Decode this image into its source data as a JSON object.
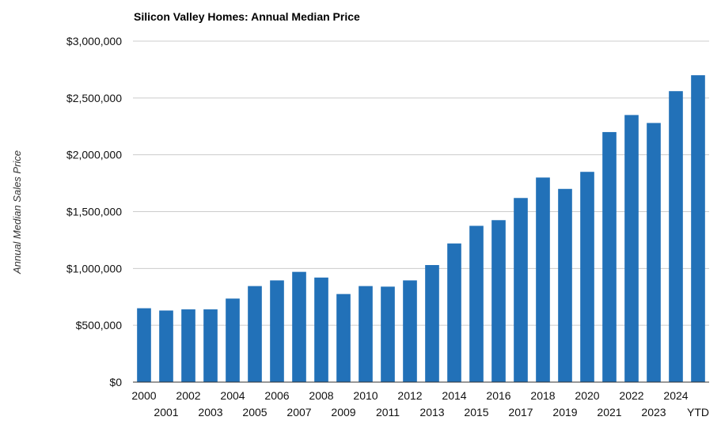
{
  "chart_data": {
    "type": "bar",
    "title": "Silicon Valley Homes: Annual Median Price",
    "xlabel": "",
    "ylabel": "Annual Median Sales Price",
    "ylim": [
      0,
      3000000
    ],
    "y_ticks": [
      0,
      500000,
      1000000,
      1500000,
      2000000,
      2500000,
      3000000
    ],
    "y_tick_labels": [
      "$0",
      "$500,000",
      "$1,000,000",
      "$1,500,000",
      "$2,000,000",
      "$2,500,000",
      "$3,000,000"
    ],
    "grid": true,
    "legend": "none",
    "colors": {
      "bar": "#2271b8",
      "grid": "#cccccc"
    },
    "categories": [
      "2000",
      "2001",
      "2002",
      "2003",
      "2004",
      "2005",
      "2006",
      "2007",
      "2008",
      "2009",
      "2010",
      "2011",
      "2012",
      "2013",
      "2014",
      "2015",
      "2016",
      "2017",
      "2018",
      "2019",
      "2020",
      "2021",
      "2022",
      "2023",
      "2024",
      "YTD"
    ],
    "values": [
      650000,
      630000,
      640000,
      640000,
      735000,
      845000,
      895000,
      970000,
      920000,
      775000,
      845000,
      840000,
      895000,
      1030000,
      1220000,
      1375000,
      1425000,
      1620000,
      1800000,
      1700000,
      1850000,
      2200000,
      2350000,
      2280000,
      2560000,
      2700000
    ]
  }
}
